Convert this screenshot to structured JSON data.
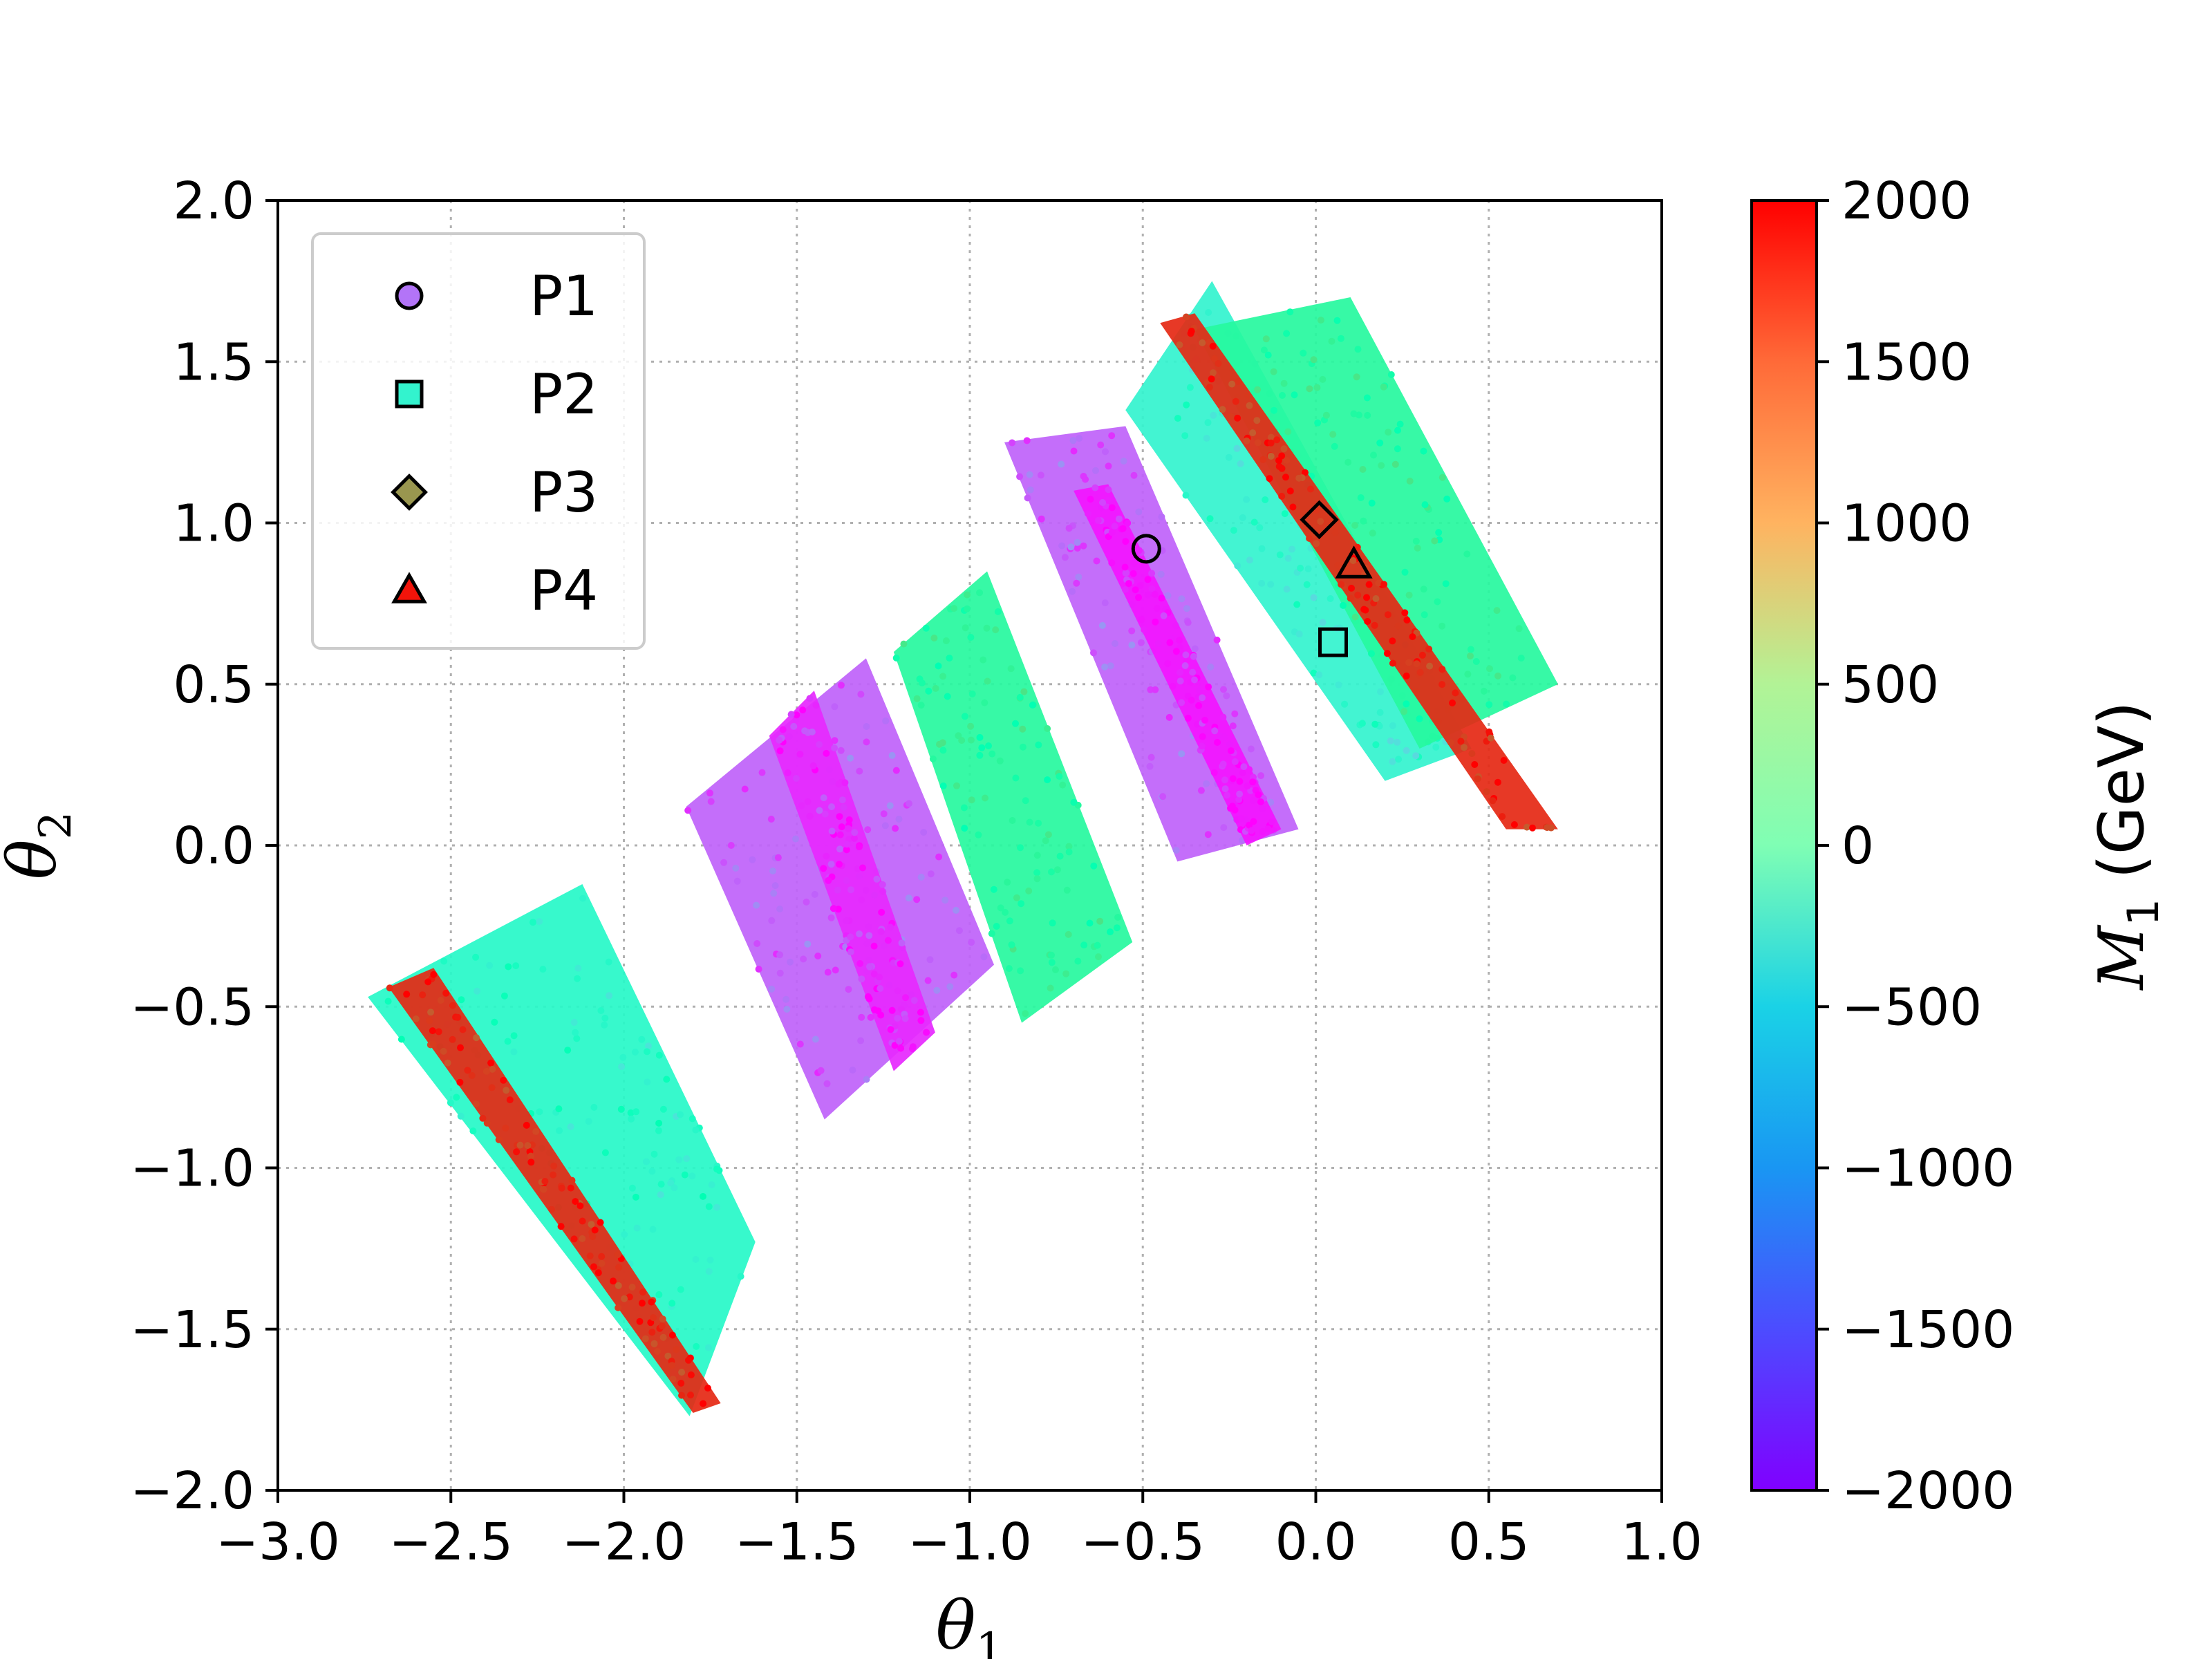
{
  "chart_data": {
    "type": "scatter",
    "title": "",
    "xlabel": "θ",
    "xlabel_sub": "1",
    "ylabel": "θ",
    "ylabel_sub": "2",
    "xlim": [
      -3.0,
      1.0
    ],
    "ylim": [
      -2.0,
      2.0
    ],
    "x_ticks": [
      -3.0,
      -2.5,
      -2.0,
      -1.5,
      -1.0,
      -0.5,
      0.0,
      0.5,
      1.0
    ],
    "x_tick_labels": [
      "−3.0",
      "−2.5",
      "−2.0",
      "−1.5",
      "−1.0",
      "−0.5",
      "0.0",
      "0.5",
      "1.0"
    ],
    "y_ticks": [
      -2.0,
      -1.5,
      -1.0,
      -0.5,
      0.0,
      0.5,
      1.0,
      1.5,
      2.0
    ],
    "y_tick_labels": [
      "−2.0",
      "−1.5",
      "−1.0",
      "−0.5",
      "0.0",
      "0.5",
      "1.0",
      "1.5",
      "2.0"
    ],
    "grid": true,
    "legend_placement": "top-left",
    "colorbar": {
      "label": "M",
      "label_sub": "1",
      "label_unit": " (GeV)",
      "range": [
        -2000,
        2000
      ],
      "ticks": [
        -2000,
        -1500,
        -1000,
        -500,
        0,
        500,
        1000,
        1500,
        2000
      ],
      "tick_labels": [
        "−2000",
        "−1500",
        "−1000",
        "−500",
        "0",
        "500",
        "1000",
        "1500",
        "2000"
      ],
      "colormap": "rainbow"
    },
    "bands": [
      {
        "corners": [
          [
            -2.74,
            -0.47
          ],
          [
            -2.12,
            -0.12
          ],
          [
            -1.62,
            -1.23
          ],
          [
            -1.81,
            -1.77
          ]
        ],
        "M1": -300
      },
      {
        "corners": [
          [
            -2.68,
            -0.44
          ],
          [
            -2.55,
            -0.38
          ],
          [
            -1.72,
            -1.73
          ],
          [
            -1.8,
            -1.76
          ]
        ],
        "M1": 1800
      },
      {
        "corners": [
          [
            -1.82,
            0.12
          ],
          [
            -1.3,
            0.58
          ],
          [
            -0.93,
            -0.37
          ],
          [
            -1.42,
            -0.85
          ]
        ],
        "M1": -1500
      },
      {
        "corners": [
          [
            -1.58,
            0.34
          ],
          [
            -1.45,
            0.48
          ],
          [
            -1.1,
            -0.58
          ],
          [
            -1.22,
            -0.7
          ]
        ],
        "M1": -1800
      },
      {
        "corners": [
          [
            -1.22,
            0.6
          ],
          [
            -0.95,
            0.85
          ],
          [
            -0.53,
            -0.3
          ],
          [
            -0.85,
            -0.55
          ]
        ],
        "M1": 300
      },
      {
        "corners": [
          [
            -0.9,
            1.25
          ],
          [
            -0.55,
            1.3
          ],
          [
            -0.05,
            0.05
          ],
          [
            -0.4,
            -0.05
          ]
        ],
        "M1": -1500
      },
      {
        "corners": [
          [
            -0.7,
            1.1
          ],
          [
            -0.6,
            1.12
          ],
          [
            -0.1,
            0.05
          ],
          [
            -0.2,
            0.0
          ]
        ],
        "M1": -1900
      },
      {
        "corners": [
          [
            -0.55,
            1.35
          ],
          [
            -0.3,
            1.75
          ],
          [
            0.45,
            0.3
          ],
          [
            0.2,
            0.2
          ]
        ],
        "M1": -400
      },
      {
        "corners": [
          [
            -0.35,
            1.6
          ],
          [
            0.1,
            1.7
          ],
          [
            0.7,
            0.5
          ],
          [
            0.3,
            0.3
          ]
        ],
        "M1": 300
      },
      {
        "corners": [
          [
            -0.45,
            1.62
          ],
          [
            -0.35,
            1.65
          ],
          [
            0.7,
            0.05
          ],
          [
            0.55,
            0.05
          ]
        ],
        "M1": 1800
      }
    ],
    "series": [
      {
        "name": "P1",
        "marker": "circle",
        "x": -0.49,
        "y": 0.92,
        "M1": -1400
      },
      {
        "name": "P2",
        "marker": "square",
        "x": 0.05,
        "y": 0.63,
        "M1": -400
      },
      {
        "name": "P3",
        "marker": "diamond",
        "x": 0.01,
        "y": 1.01,
        "M1": 1200
      },
      {
        "name": "P4",
        "marker": "triangle",
        "x": 0.11,
        "y": 0.87,
        "M1": 1900
      }
    ]
  }
}
